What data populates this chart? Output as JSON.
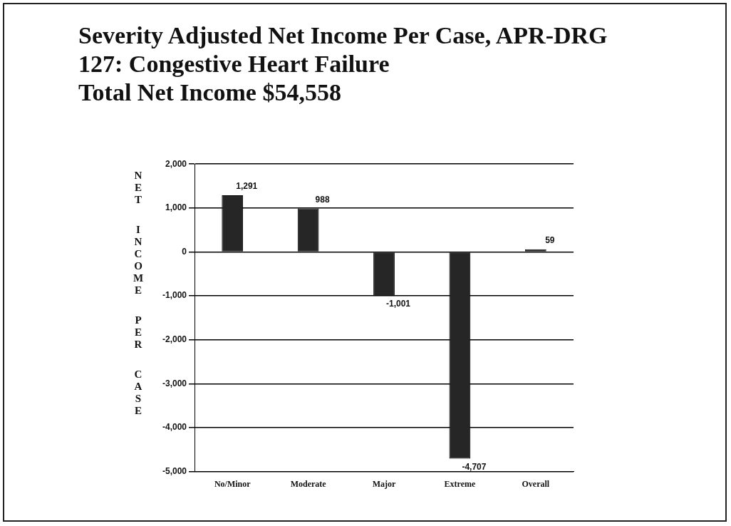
{
  "chart_data": {
    "type": "bar",
    "title": "Severity Adjusted Net Income Per Case, APR-DRG 127: Congestive Heart Failure",
    "subtitle": "Total Net Income $54,558",
    "ylabel": "NET INCOME PER CASE",
    "categories": [
      "No/Minor",
      "Moderate",
      "Major",
      "Extreme",
      "Overall"
    ],
    "values": [
      1291,
      988,
      -1001,
      -4707,
      59
    ],
    "value_labels": [
      "1,291",
      "988",
      "-1,001",
      "-4,707",
      "59"
    ],
    "color": "#262626",
    "ylim": [
      -5000,
      2000
    ],
    "yticks": [
      {
        "value": -5000,
        "label": "-5,000"
      },
      {
        "value": -4000,
        "label": "-4,000"
      },
      {
        "value": -3000,
        "label": "-3,000"
      },
      {
        "value": -2000,
        "label": "-2,000"
      },
      {
        "value": -1000,
        "label": "-1,000"
      },
      0,
      {
        "value": 1000,
        "label": "1,000"
      },
      {
        "value": 2000,
        "label": "2,000"
      }
    ],
    "grid": "y"
  }
}
